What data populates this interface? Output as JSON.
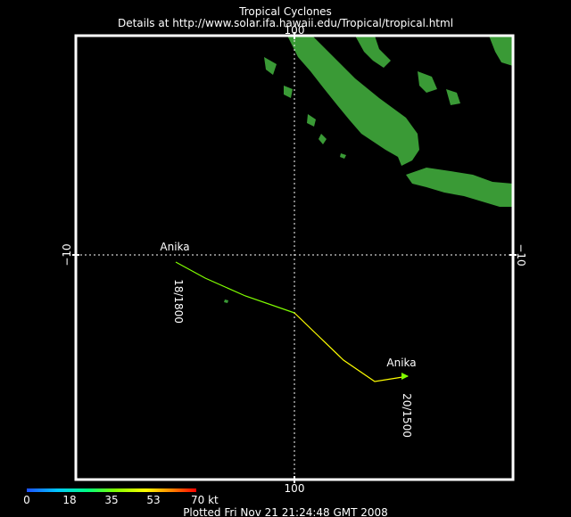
{
  "header": {
    "title": "Tropical Cyclones",
    "details": "Details at http://www.solar.ifa.hawaii.edu/Tropical/tropical.html"
  },
  "map": {
    "grid": {
      "longitude": "100",
      "latitude_left": "−10",
      "latitude_right": "−10"
    },
    "colors": {
      "land": "#3a9a36",
      "ocean": "#000000",
      "frame": "#ffffff",
      "grid": "#ffffff"
    },
    "storm": {
      "name_start": "Anika",
      "name_end": "Anika",
      "time_start": "18/1800",
      "time_end": "20/1500"
    }
  },
  "legend": {
    "ticks": [
      "0",
      "18",
      "35",
      "53",
      "70 kt"
    ],
    "colors": [
      "#1e50ff",
      "#00c8ff",
      "#00ff80",
      "#80ff00",
      "#ffff00",
      "#ff8000",
      "#ff0000"
    ]
  },
  "footer": {
    "plotted": "Plotted Fri Nov 21 21:24:48 GMT 2008"
  }
}
